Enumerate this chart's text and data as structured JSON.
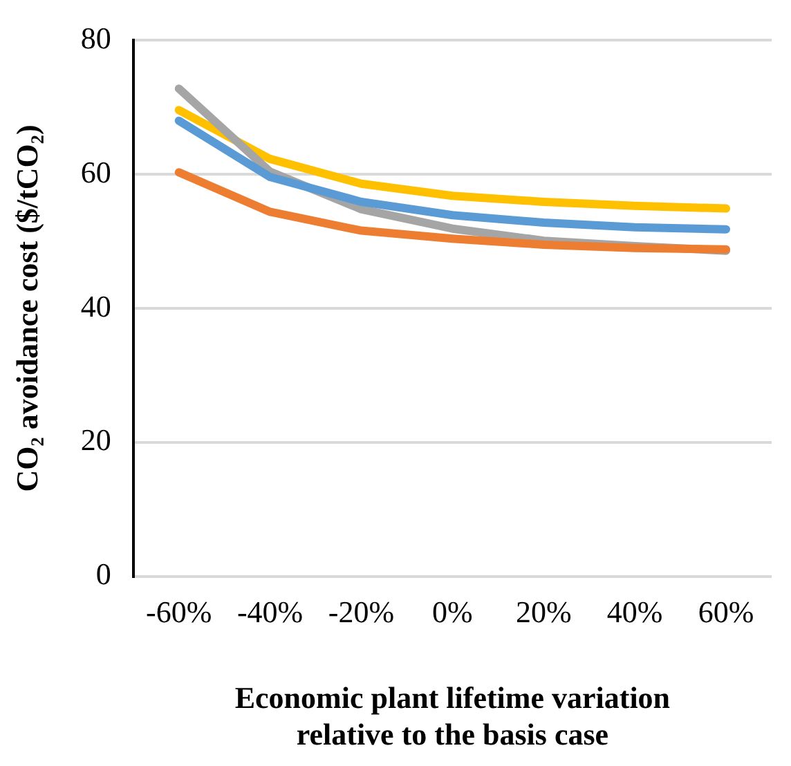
{
  "chart_data": {
    "type": "line",
    "xlabel": "Economic plant lifetime variation\nrelative to the basis case",
    "ylabel": "CO₂ avoidance cost ($/tCO₂)",
    "categories": [
      "-60%",
      "-40%",
      "-20%",
      "0%",
      "20%",
      "40%",
      "60%"
    ],
    "series": [
      {
        "color": "#5b9bd5",
        "values": [
          68,
          59.6,
          55.9,
          53.9,
          52.8,
          52.1,
          51.8
        ]
      },
      {
        "color": "#ed7d31",
        "values": [
          60.3,
          54.4,
          51.6,
          50.4,
          49.5,
          49,
          48.8
        ]
      },
      {
        "color": "#a5a5a5",
        "values": [
          72.8,
          60.4,
          54.8,
          51.9,
          50.1,
          49.3,
          48.6
        ]
      },
      {
        "color": "#ffc000",
        "values": [
          69.6,
          62.3,
          58.6,
          56.8,
          55.9,
          55.3,
          54.9
        ]
      }
    ],
    "ylim": [
      0,
      80
    ],
    "yticks": [
      0,
      20,
      40,
      60,
      80
    ],
    "grid": "y",
    "legend": false,
    "marker": "none",
    "line_style": "solid"
  }
}
